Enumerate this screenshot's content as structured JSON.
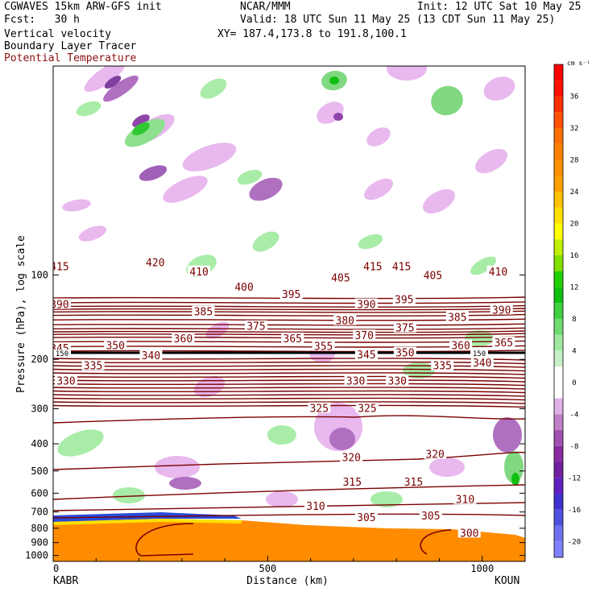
{
  "header": {
    "model": "CGWAVES 15km ARW-GFS init",
    "forecast": "Fcst:   30 h",
    "org": "NCAR/MMM",
    "init": "Init: 12 UTC Sat 10 May 25",
    "valid": "Valid: 18 UTC Sun 11 May 25 (13 CDT Sun 11 May 25)",
    "xy": "XY= 187.4,173.8 to 191.8,100.1",
    "field1": "Vertical velocity",
    "field2": "Boundary Layer Tracer",
    "field3": "Potential Temperature"
  },
  "colors": {
    "theta": "#7a0000",
    "tropopause": "#000000",
    "tracer": "#ff8c00"
  },
  "chart_data": {
    "type": "heatmap",
    "xlabel": "Distance (km)",
    "ylabel": "Pressure (hPa), log scale",
    "xlim": [
      0,
      1100
    ],
    "ylim": [
      1050,
      18
    ],
    "y_log_scale": true,
    "x_ticks": [
      0,
      500,
      1000
    ],
    "y_ticks": [
      100,
      200,
      300,
      400,
      500,
      600,
      700,
      800,
      900,
      1000
    ],
    "y_tick_labels": [
      "100",
      "200",
      "300",
      "400",
      "500",
      "600",
      "700",
      "800",
      "900",
      "1000"
    ],
    "x_end_labels": {
      "left": "KABR",
      "right": "KOUN"
    },
    "colorbar": {
      "units": "cm s⁻¹",
      "levels": [
        -22,
        -20,
        -18,
        -16,
        -14,
        -12,
        -10,
        -8,
        -6,
        -4,
        -2,
        2,
        4,
        6,
        8,
        10,
        12,
        14,
        16,
        18,
        20,
        22,
        24,
        26,
        28,
        30,
        32,
        34,
        36,
        38,
        40
      ],
      "colors": [
        "#8080ff",
        "#7070f0",
        "#5050e0",
        "#4030d0",
        "#6020c0",
        "#7020a0",
        "#8a2aa0",
        "#a050b0",
        "#c080c8",
        "#e0b0e8",
        "#ffffff",
        "#c8f0c8",
        "#a0e8a0",
        "#70dc70",
        "#40d040",
        "#10c010",
        "#20d000",
        "#80e000",
        "#c0f000",
        "#ffff00",
        "#ffe000",
        "#ffc000",
        "#ffa000",
        "#ff9000",
        "#ff8000",
        "#ff7000",
        "#ff5000",
        "#ff3000",
        "#ff1000",
        "#ff0000"
      ],
      "labels": [
        -20,
        -16,
        -12,
        -8,
        -4,
        0,
        4,
        8,
        12,
        16,
        20,
        24,
        28,
        32,
        36
      ]
    },
    "theta_labels": [
      {
        "v": "415",
        "x": 15,
        "p": 93
      },
      {
        "v": "420",
        "x": 238,
        "p": 90
      },
      {
        "v": "410",
        "x": 340,
        "p": 97
      },
      {
        "v": "400",
        "x": 445,
        "p": 110
      },
      {
        "v": "405",
        "x": 670,
        "p": 102
      },
      {
        "v": "415",
        "x": 745,
        "p": 93
      },
      {
        "v": "415",
        "x": 812,
        "p": 93
      },
      {
        "v": "405",
        "x": 885,
        "p": 100
      },
      {
        "v": "410",
        "x": 1037,
        "p": 97
      },
      {
        "v": "390",
        "x": 15,
        "p": 127
      },
      {
        "v": "395",
        "x": 555,
        "p": 117
      },
      {
        "v": "390",
        "x": 730,
        "p": 127
      },
      {
        "v": "395",
        "x": 818,
        "p": 122
      },
      {
        "v": "385",
        "x": 350,
        "p": 135
      },
      {
        "v": "380",
        "x": 680,
        "p": 145
      },
      {
        "v": "385",
        "x": 942,
        "p": 141
      },
      {
        "v": "390",
        "x": 1045,
        "p": 133
      },
      {
        "v": "375",
        "x": 473,
        "p": 152
      },
      {
        "v": "375",
        "x": 820,
        "p": 154
      },
      {
        "v": "365",
        "x": 558,
        "p": 168
      },
      {
        "v": "370",
        "x": 725,
        "p": 164
      },
      {
        "v": "360",
        "x": 303,
        "p": 168
      },
      {
        "v": "360",
        "x": 950,
        "p": 178
      },
      {
        "v": "365",
        "x": 1050,
        "p": 174
      },
      {
        "v": "345",
        "x": 15,
        "p": 182
      },
      {
        "v": "350",
        "x": 145,
        "p": 178
      },
      {
        "v": "355",
        "x": 630,
        "p": 179
      },
      {
        "v": "350",
        "x": 820,
        "p": 189
      },
      {
        "v": "340",
        "x": 228,
        "p": 193
      },
      {
        "v": "345",
        "x": 730,
        "p": 192
      },
      {
        "v": "335",
        "x": 93,
        "p": 210
      },
      {
        "v": "335",
        "x": 907,
        "p": 210
      },
      {
        "v": "340",
        "x": 1000,
        "p": 205
      },
      {
        "v": "330",
        "x": 30,
        "p": 238
      },
      {
        "v": "330",
        "x": 705,
        "p": 238
      },
      {
        "v": "330",
        "x": 802,
        "p": 238
      },
      {
        "v": "325",
        "x": 620,
        "p": 298
      },
      {
        "v": "325",
        "x": 732,
        "p": 298
      },
      {
        "v": "320",
        "x": 695,
        "p": 446
      },
      {
        "v": "320",
        "x": 890,
        "p": 435
      },
      {
        "v": "315",
        "x": 697,
        "p": 545
      },
      {
        "v": "315",
        "x": 840,
        "p": 545
      },
      {
        "v": "310",
        "x": 612,
        "p": 665
      },
      {
        "v": "310",
        "x": 960,
        "p": 630
      },
      {
        "v": "305",
        "x": 730,
        "p": 730
      },
      {
        "v": "305",
        "x": 880,
        "p": 720
      },
      {
        "v": "300",
        "x": 970,
        "p": 830
      }
    ],
    "tropopause_label": "150"
  }
}
